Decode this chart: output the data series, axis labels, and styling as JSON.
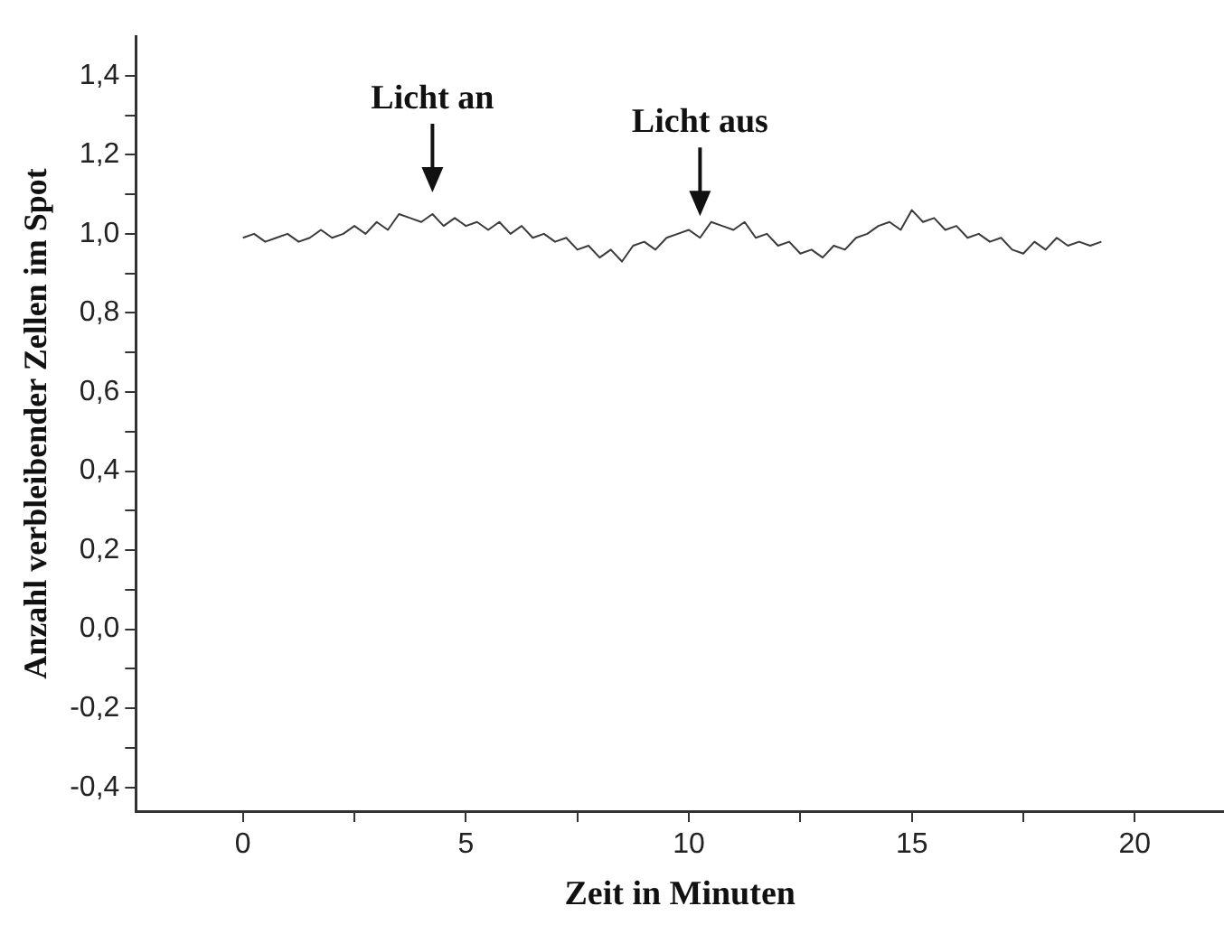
{
  "chart_data": {
    "type": "line",
    "xlabel": "Zeit in Minuten",
    "ylabel": "Anzahl verbleibender Zellen im Spot",
    "x": [
      0,
      0.25,
      0.5,
      0.75,
      1,
      1.25,
      1.5,
      1.75,
      2,
      2.25,
      2.5,
      2.75,
      3,
      3.25,
      3.5,
      3.75,
      4,
      4.25,
      4.5,
      4.75,
      5,
      5.25,
      5.5,
      5.75,
      6,
      6.25,
      6.5,
      6.75,
      7,
      7.25,
      7.5,
      7.75,
      8,
      8.25,
      8.5,
      8.75,
      9,
      9.25,
      9.5,
      9.75,
      10,
      10.25,
      10.5,
      10.75,
      11,
      11.25,
      11.5,
      11.75,
      12,
      12.25,
      12.5,
      12.75,
      13,
      13.25,
      13.5,
      13.75,
      14,
      14.25,
      14.5,
      14.75,
      15,
      15.25,
      15.5,
      15.75,
      16,
      16.25,
      16.5,
      16.75,
      17,
      17.25,
      17.5,
      17.75,
      18,
      18.25,
      18.5,
      18.75,
      19,
      19.25
    ],
    "series": [
      {
        "color": "#3a3a3a",
        "values": [
          0.99,
          1.0,
          0.98,
          0.99,
          1.0,
          0.98,
          0.99,
          1.01,
          0.99,
          1.0,
          1.02,
          1.0,
          1.03,
          1.01,
          1.05,
          1.04,
          1.03,
          1.05,
          1.02,
          1.04,
          1.02,
          1.03,
          1.01,
          1.03,
          1.0,
          1.02,
          0.99,
          1.0,
          0.98,
          0.99,
          0.96,
          0.97,
          0.94,
          0.96,
          0.93,
          0.97,
          0.98,
          0.96,
          0.99,
          1.0,
          1.01,
          0.99,
          1.03,
          1.02,
          1.01,
          1.03,
          0.99,
          1.0,
          0.97,
          0.98,
          0.95,
          0.96,
          0.94,
          0.97,
          0.96,
          0.99,
          1.0,
          1.02,
          1.03,
          1.01,
          1.06,
          1.03,
          1.04,
          1.01,
          1.02,
          0.99,
          1.0,
          0.98,
          0.99,
          0.96,
          0.95,
          0.98,
          0.96,
          0.99,
          0.97,
          0.98,
          0.97,
          0.98
        ]
      }
    ],
    "xlim": [
      -2.4,
      22
    ],
    "ylim": [
      -0.46,
      1.5
    ],
    "xticks": [
      0,
      {
        "value": 2.5,
        "label": null
      },
      5,
      {
        "value": 7.5,
        "label": null
      },
      10,
      {
        "value": 12.5,
        "label": null
      },
      15,
      {
        "value": 17.5,
        "label": null
      },
      20
    ],
    "yticks": [
      {
        "value": -0.4,
        "label": "-0,4"
      },
      {
        "value": -0.3,
        "label": null
      },
      {
        "value": -0.2,
        "label": "-0,2"
      },
      {
        "value": -0.1,
        "label": null
      },
      {
        "value": 0,
        "label": "0,0"
      },
      {
        "value": 0.1,
        "label": null
      },
      {
        "value": 0.2,
        "label": "0,2"
      },
      {
        "value": 0.3,
        "label": null
      },
      {
        "value": 0.4,
        "label": "0,4"
      },
      {
        "value": 0.5,
        "label": null
      },
      {
        "value": 0.6,
        "label": "0,6"
      },
      {
        "value": 0.7,
        "label": null
      },
      {
        "value": 0.8,
        "label": "0,8"
      },
      {
        "value": 0.9,
        "label": null
      },
      {
        "value": 1,
        "label": "1,0"
      },
      {
        "value": 1.1,
        "label": null
      },
      {
        "value": 1.2,
        "label": "1,2"
      },
      {
        "value": 1.3,
        "label": null
      },
      {
        "value": 1.4,
        "label": "1,4"
      }
    ],
    "annotations": [
      {
        "text": "Licht an",
        "x": 4.25,
        "y": 1.05
      },
      {
        "text": "Licht aus",
        "x": 10.25,
        "y": 0.99
      }
    ],
    "grid": false,
    "legend": false,
    "marker": "none",
    "line_style": "solid"
  }
}
